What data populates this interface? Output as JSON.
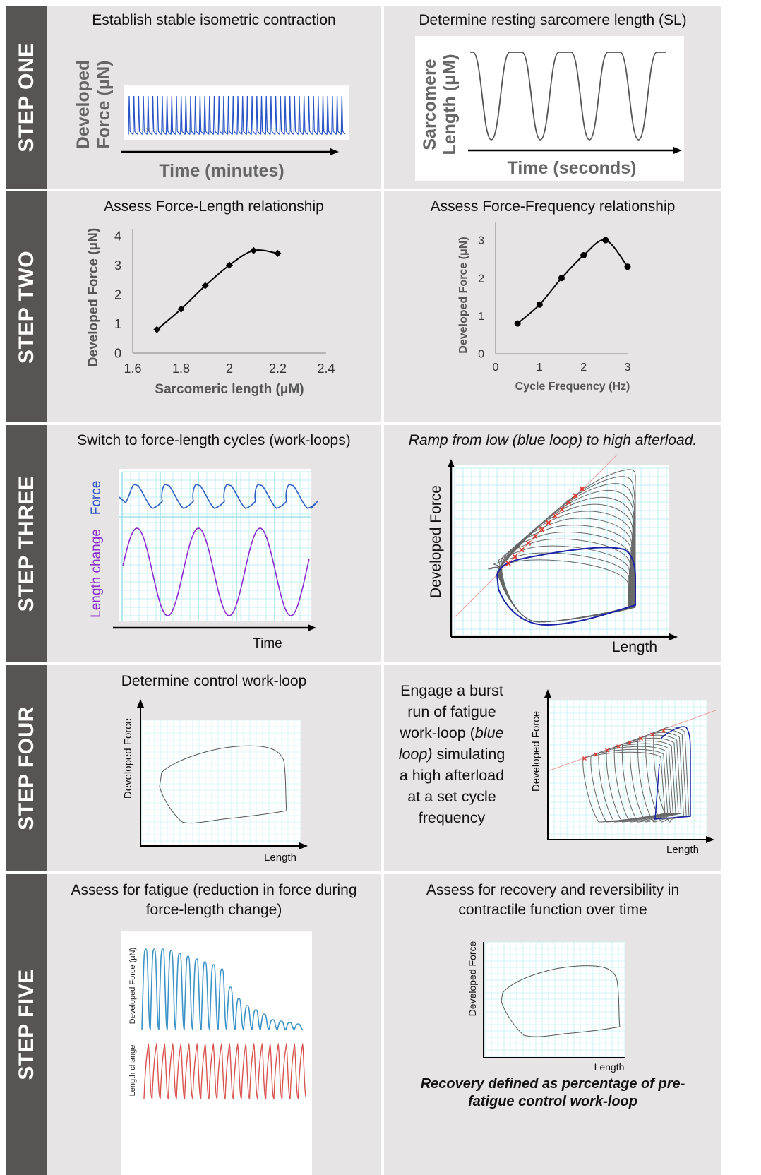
{
  "steps": [
    {
      "label": "STEP ONE"
    },
    {
      "label": "STEP TWO"
    },
    {
      "label": "STEP THREE"
    },
    {
      "label": "STEP FOUR"
    },
    {
      "label": "STEP FIVE"
    }
  ],
  "step1": {
    "left": {
      "title": "Establish stable isometric contraction",
      "ylabel_line1": "Developed",
      "ylabel_line2": "Force (μN)",
      "xlabel": "Time (minutes)"
    },
    "right": {
      "title": "Determine resting sarcomere length (SL)",
      "ylabel_line1": "Sarcomere",
      "ylabel_line2": "Length (μM)",
      "xlabel": "Time (seconds)"
    }
  },
  "step2": {
    "left": {
      "title": "Assess Force-Length relationship"
    },
    "right": {
      "title": "Assess Force-Frequency relationship"
    }
  },
  "step3": {
    "left": {
      "title": "Switch to force-length cycles (work-loops)",
      "force_label": "Force",
      "length_label": "Length change",
      "xlabel": "Time"
    },
    "right": {
      "title": "Ramp from low (blue loop) to high afterload.",
      "ylabel": "Developed Force",
      "xlabel": "Length"
    }
  },
  "step4": {
    "left": {
      "title": "Determine control work-loop",
      "ylabel": "Developed Force",
      "xlabel": "Length"
    },
    "right": {
      "text_lines": [
        "Engage a burst",
        "run of fatigue",
        "work-loop (blue",
        "loop) simulating",
        "a high afterload",
        "at a set cycle",
        "frequency"
      ],
      "ylabel": "Developed Force",
      "xlabel": "Length"
    }
  },
  "step5": {
    "left": {
      "title_line1": "Assess for fatigue (reduction in force during",
      "title_line2": "force-length change)",
      "force_label": "Developed Force (μN)",
      "length_label": "Length change"
    },
    "right": {
      "title_line1": "Assess for recovery and reversibility in",
      "title_line2": "contractile function over time",
      "ylabel": "Developed Force",
      "xlabel": "Length",
      "footnote_line1": "Recovery defined as percentage of pre-",
      "footnote_line2": "fatigue control work-loop"
    }
  },
  "colors": {
    "band": "#595454",
    "panel": "#e6e4e4",
    "blue": "#2a55c8",
    "grid": "#bfeff3",
    "purple": "#8a2ccf",
    "red": "#e03a2f",
    "navy": "#1c22a6",
    "teal": "#3c93c7",
    "redtrace": "#d9534f"
  },
  "chart_data": [
    {
      "type": "line",
      "xlabel": "Sarcomeric length (μM)",
      "ylabel": "Developed Force (μN)",
      "x_ticks": [
        1.6,
        1.8,
        2,
        2.2,
        2.4
      ],
      "y_ticks": [
        0,
        1,
        2,
        3,
        4
      ],
      "xlim": [
        1.6,
        2.4
      ],
      "ylim": [
        0,
        4
      ],
      "x": [
        1.7,
        1.8,
        1.9,
        2.0,
        2.1,
        2.2
      ],
      "y": [
        0.8,
        1.5,
        2.3,
        3.0,
        3.5,
        3.4
      ]
    },
    {
      "type": "line",
      "xlabel": "Cycle Frequency (Hz)",
      "ylabel": "Developed Force (μN)",
      "x_ticks": [
        0,
        1,
        2,
        3
      ],
      "y_ticks": [
        0,
        1,
        2,
        3
      ],
      "xlim": [
        0,
        3
      ],
      "ylim": [
        0,
        3.3
      ],
      "x": [
        0.5,
        1.0,
        1.5,
        2.0,
        2.5,
        3.0
      ],
      "y": [
        0.8,
        1.3,
        2.0,
        2.6,
        3.0,
        2.3
      ]
    }
  ]
}
